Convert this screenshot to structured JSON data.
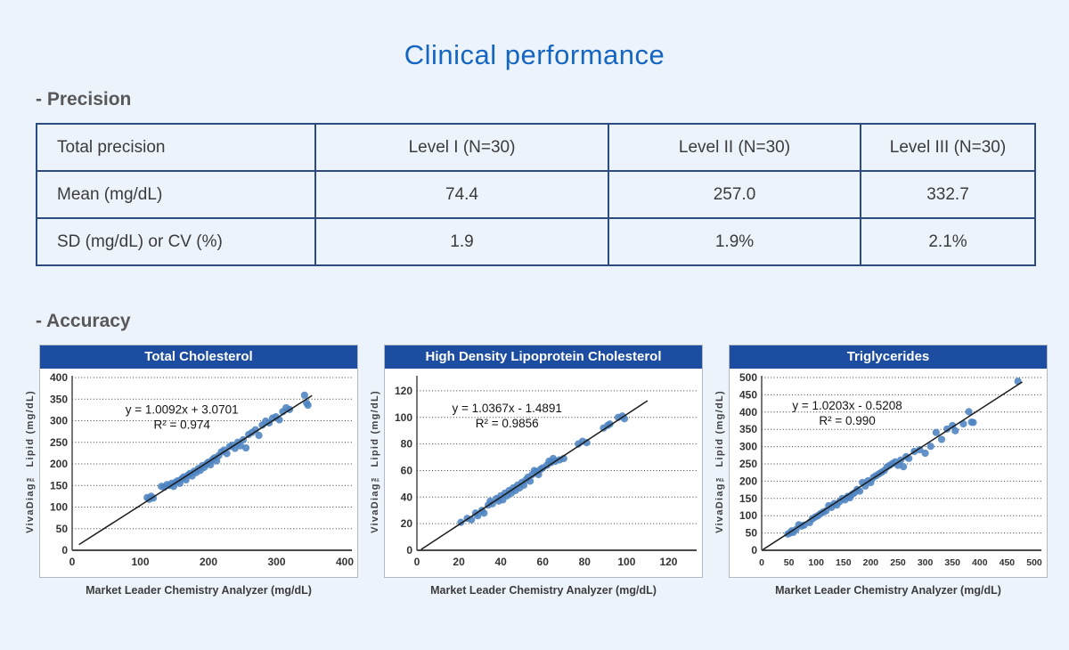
{
  "page": {
    "title": "Clinical performance"
  },
  "sections": {
    "precision_heading": "- Precision",
    "accuracy_heading": "- Accuracy"
  },
  "precision_table": {
    "rows": [
      [
        "Total precision",
        "Level I (N=30)",
        "Level II (N=30)",
        "Level III (N=30)"
      ],
      [
        "Mean (mg/dL)",
        "74.4",
        "257.0",
        "332.7"
      ],
      [
        "SD (mg/dL) or CV (%)",
        "1.9",
        "1.9%",
        "2.1%"
      ]
    ]
  },
  "colors": {
    "page_background": "#edf3fa",
    "title_blue": "#1566c2",
    "banner_blue": "#1c4da0",
    "table_border_navy": "#2c4b80",
    "point_blue": "#4c83c0",
    "trendline": "#1b1b1b",
    "heading_gray": "#58585a"
  },
  "chart_data": [
    {
      "type": "scatter",
      "title": "Total Cholesterol",
      "equation": "y = 1.0092x + 3.0701",
      "r2": "R² = 0.974",
      "xlabel": "Market Leader Chemistry Analyzer (mg/dL)",
      "ylabel": "VivaDiag™ Lipid (mg/dL)",
      "xlim": [
        0,
        400
      ],
      "ylim": [
        0,
        400
      ],
      "xticks": [
        0,
        100,
        200,
        300,
        400
      ],
      "yticks": [
        0,
        50,
        100,
        150,
        200,
        250,
        300,
        350,
        400
      ],
      "grid": "dotted-horizontal",
      "trend": {
        "slope": 1.0092,
        "intercept": 3.0701,
        "x1": 10,
        "x2": 352
      },
      "annotation": {
        "x": 161,
        "y": 317
      },
      "points": [
        [
          110,
          122
        ],
        [
          113,
          118
        ],
        [
          116,
          125
        ],
        [
          119,
          121
        ],
        [
          131,
          148
        ],
        [
          135,
          146
        ],
        [
          139,
          152
        ],
        [
          143,
          150
        ],
        [
          146,
          155
        ],
        [
          149,
          148
        ],
        [
          152,
          158
        ],
        [
          155,
          161
        ],
        [
          158,
          155
        ],
        [
          161,
          166
        ],
        [
          164,
          170
        ],
        [
          167,
          163
        ],
        [
          170,
          174
        ],
        [
          173,
          178
        ],
        [
          176,
          172
        ],
        [
          179,
          183
        ],
        [
          182,
          180
        ],
        [
          185,
          189
        ],
        [
          188,
          185
        ],
        [
          191,
          196
        ],
        [
          194,
          192
        ],
        [
          197,
          200
        ],
        [
          200,
          204
        ],
        [
          203,
          198
        ],
        [
          206,
          210
        ],
        [
          209,
          214
        ],
        [
          212,
          207
        ],
        [
          215,
          219
        ],
        [
          219,
          228
        ],
        [
          223,
          232
        ],
        [
          227,
          224
        ],
        [
          231,
          240
        ],
        [
          235,
          243
        ],
        [
          239,
          236
        ],
        [
          243,
          250
        ],
        [
          247,
          242
        ],
        [
          251,
          256
        ],
        [
          255,
          237
        ],
        [
          259,
          268
        ],
        [
          264,
          273
        ],
        [
          269,
          279
        ],
        [
          274,
          266
        ],
        [
          279,
          290
        ],
        [
          284,
          299
        ],
        [
          289,
          295
        ],
        [
          294,
          306
        ],
        [
          299,
          309
        ],
        [
          304,
          302
        ],
        [
          309,
          321
        ],
        [
          314,
          330
        ],
        [
          319,
          326
        ],
        [
          341,
          359
        ],
        [
          344,
          341
        ],
        [
          346,
          336
        ]
      ]
    },
    {
      "type": "scatter",
      "title": "High Density Lipoprotein Cholesterol",
      "equation": "y = 1.0367x - 1.4891",
      "r2": "R² = 0.9856",
      "xlabel": "Market Leader Chemistry Analyzer (mg/dL)",
      "ylabel": "VivaDiag™ Lipid (mg/dL)",
      "xlim": [
        0,
        130
      ],
      "ylim": [
        0,
        130
      ],
      "xticks": [
        0,
        20,
        40,
        60,
        80,
        100,
        120
      ],
      "yticks": [
        0,
        20,
        40,
        60,
        80,
        100,
        120
      ],
      "grid": "dotted-horizontal",
      "trend": {
        "slope": 1.0367,
        "intercept": -1.4891,
        "x1": 2,
        "x2": 110
      },
      "annotation": {
        "x": 43,
        "y": 104
      },
      "points": [
        [
          21,
          21
        ],
        [
          24,
          24
        ],
        [
          26,
          23
        ],
        [
          28,
          28
        ],
        [
          29,
          26
        ],
        [
          31,
          30
        ],
        [
          32,
          28
        ],
        [
          34,
          34
        ],
        [
          35,
          37
        ],
        [
          36,
          35
        ],
        [
          38,
          39
        ],
        [
          39,
          37
        ],
        [
          40,
          41
        ],
        [
          41,
          38
        ],
        [
          42,
          43
        ],
        [
          43,
          41
        ],
        [
          44,
          45
        ],
        [
          45,
          43
        ],
        [
          46,
          47
        ],
        [
          47,
          45
        ],
        [
          48,
          49
        ],
        [
          49,
          47
        ],
        [
          50,
          51
        ],
        [
          51,
          49
        ],
        [
          52,
          53
        ],
        [
          53,
          55
        ],
        [
          54,
          52
        ],
        [
          55,
          57
        ],
        [
          56,
          60
        ],
        [
          57,
          59
        ],
        [
          58,
          57
        ],
        [
          59,
          61
        ],
        [
          60,
          62
        ],
        [
          62,
          64
        ],
        [
          63,
          67
        ],
        [
          64,
          66
        ],
        [
          65,
          69
        ],
        [
          66,
          67
        ],
        [
          68,
          68
        ],
        [
          70,
          69
        ],
        [
          77,
          80
        ],
        [
          79,
          82
        ],
        [
          81,
          81
        ],
        [
          89,
          92
        ],
        [
          91,
          94
        ],
        [
          92,
          95
        ],
        [
          96,
          100
        ],
        [
          98,
          101
        ],
        [
          99,
          99
        ]
      ]
    },
    {
      "type": "scatter",
      "title": "Triglycerides",
      "equation": "y = 1.0203x - 0.5208",
      "r2": "R² = 0.990",
      "xlabel": "Market Leader Chemistry Analyzer (mg/dL)",
      "ylabel": "VivaDiag™ Lipid (mg/dL)",
      "xlim": [
        0,
        500
      ],
      "ylim": [
        0,
        500
      ],
      "xticks": [
        0,
        50,
        100,
        150,
        200,
        250,
        300,
        350,
        400,
        450,
        500
      ],
      "yticks": [
        0,
        50,
        100,
        150,
        200,
        250,
        300,
        350,
        400,
        450,
        500
      ],
      "grid": "dotted-horizontal",
      "trend": {
        "slope": 1.0203,
        "intercept": -0.5208,
        "x1": 2,
        "x2": 478
      },
      "annotation": {
        "x": 157,
        "y": 407
      },
      "points": [
        [
          48,
          47
        ],
        [
          52,
          50
        ],
        [
          55,
          56
        ],
        [
          58,
          52
        ],
        [
          63,
          60
        ],
        [
          68,
          74
        ],
        [
          73,
          70
        ],
        [
          78,
          73
        ],
        [
          88,
          80
        ],
        [
          93,
          91
        ],
        [
          98,
          96
        ],
        [
          103,
          100
        ],
        [
          108,
          106
        ],
        [
          113,
          111
        ],
        [
          118,
          114
        ],
        [
          123,
          129
        ],
        [
          128,
          124
        ],
        [
          133,
          135
        ],
        [
          138,
          131
        ],
        [
          143,
          141
        ],
        [
          148,
          150
        ],
        [
          153,
          146
        ],
        [
          158,
          156
        ],
        [
          162,
          152
        ],
        [
          166,
          162
        ],
        [
          170,
          166
        ],
        [
          175,
          176
        ],
        [
          180,
          171
        ],
        [
          185,
          196
        ],
        [
          190,
          186
        ],
        [
          195,
          201
        ],
        [
          200,
          196
        ],
        [
          205,
          211
        ],
        [
          210,
          216
        ],
        [
          215,
          221
        ],
        [
          220,
          226
        ],
        [
          225,
          231
        ],
        [
          230,
          241
        ],
        [
          235,
          246
        ],
        [
          240,
          251
        ],
        [
          245,
          256
        ],
        [
          250,
          246
        ],
        [
          255,
          261
        ],
        [
          260,
          242
        ],
        [
          265,
          271
        ],
        [
          270,
          266
        ],
        [
          280,
          286
        ],
        [
          290,
          291
        ],
        [
          300,
          281
        ],
        [
          310,
          301
        ],
        [
          320,
          341
        ],
        [
          330,
          321
        ],
        [
          340,
          351
        ],
        [
          350,
          361
        ],
        [
          355,
          346
        ],
        [
          370,
          366
        ],
        [
          380,
          401
        ],
        [
          385,
          371
        ],
        [
          388,
          370
        ],
        [
          470,
          489
        ]
      ]
    }
  ]
}
